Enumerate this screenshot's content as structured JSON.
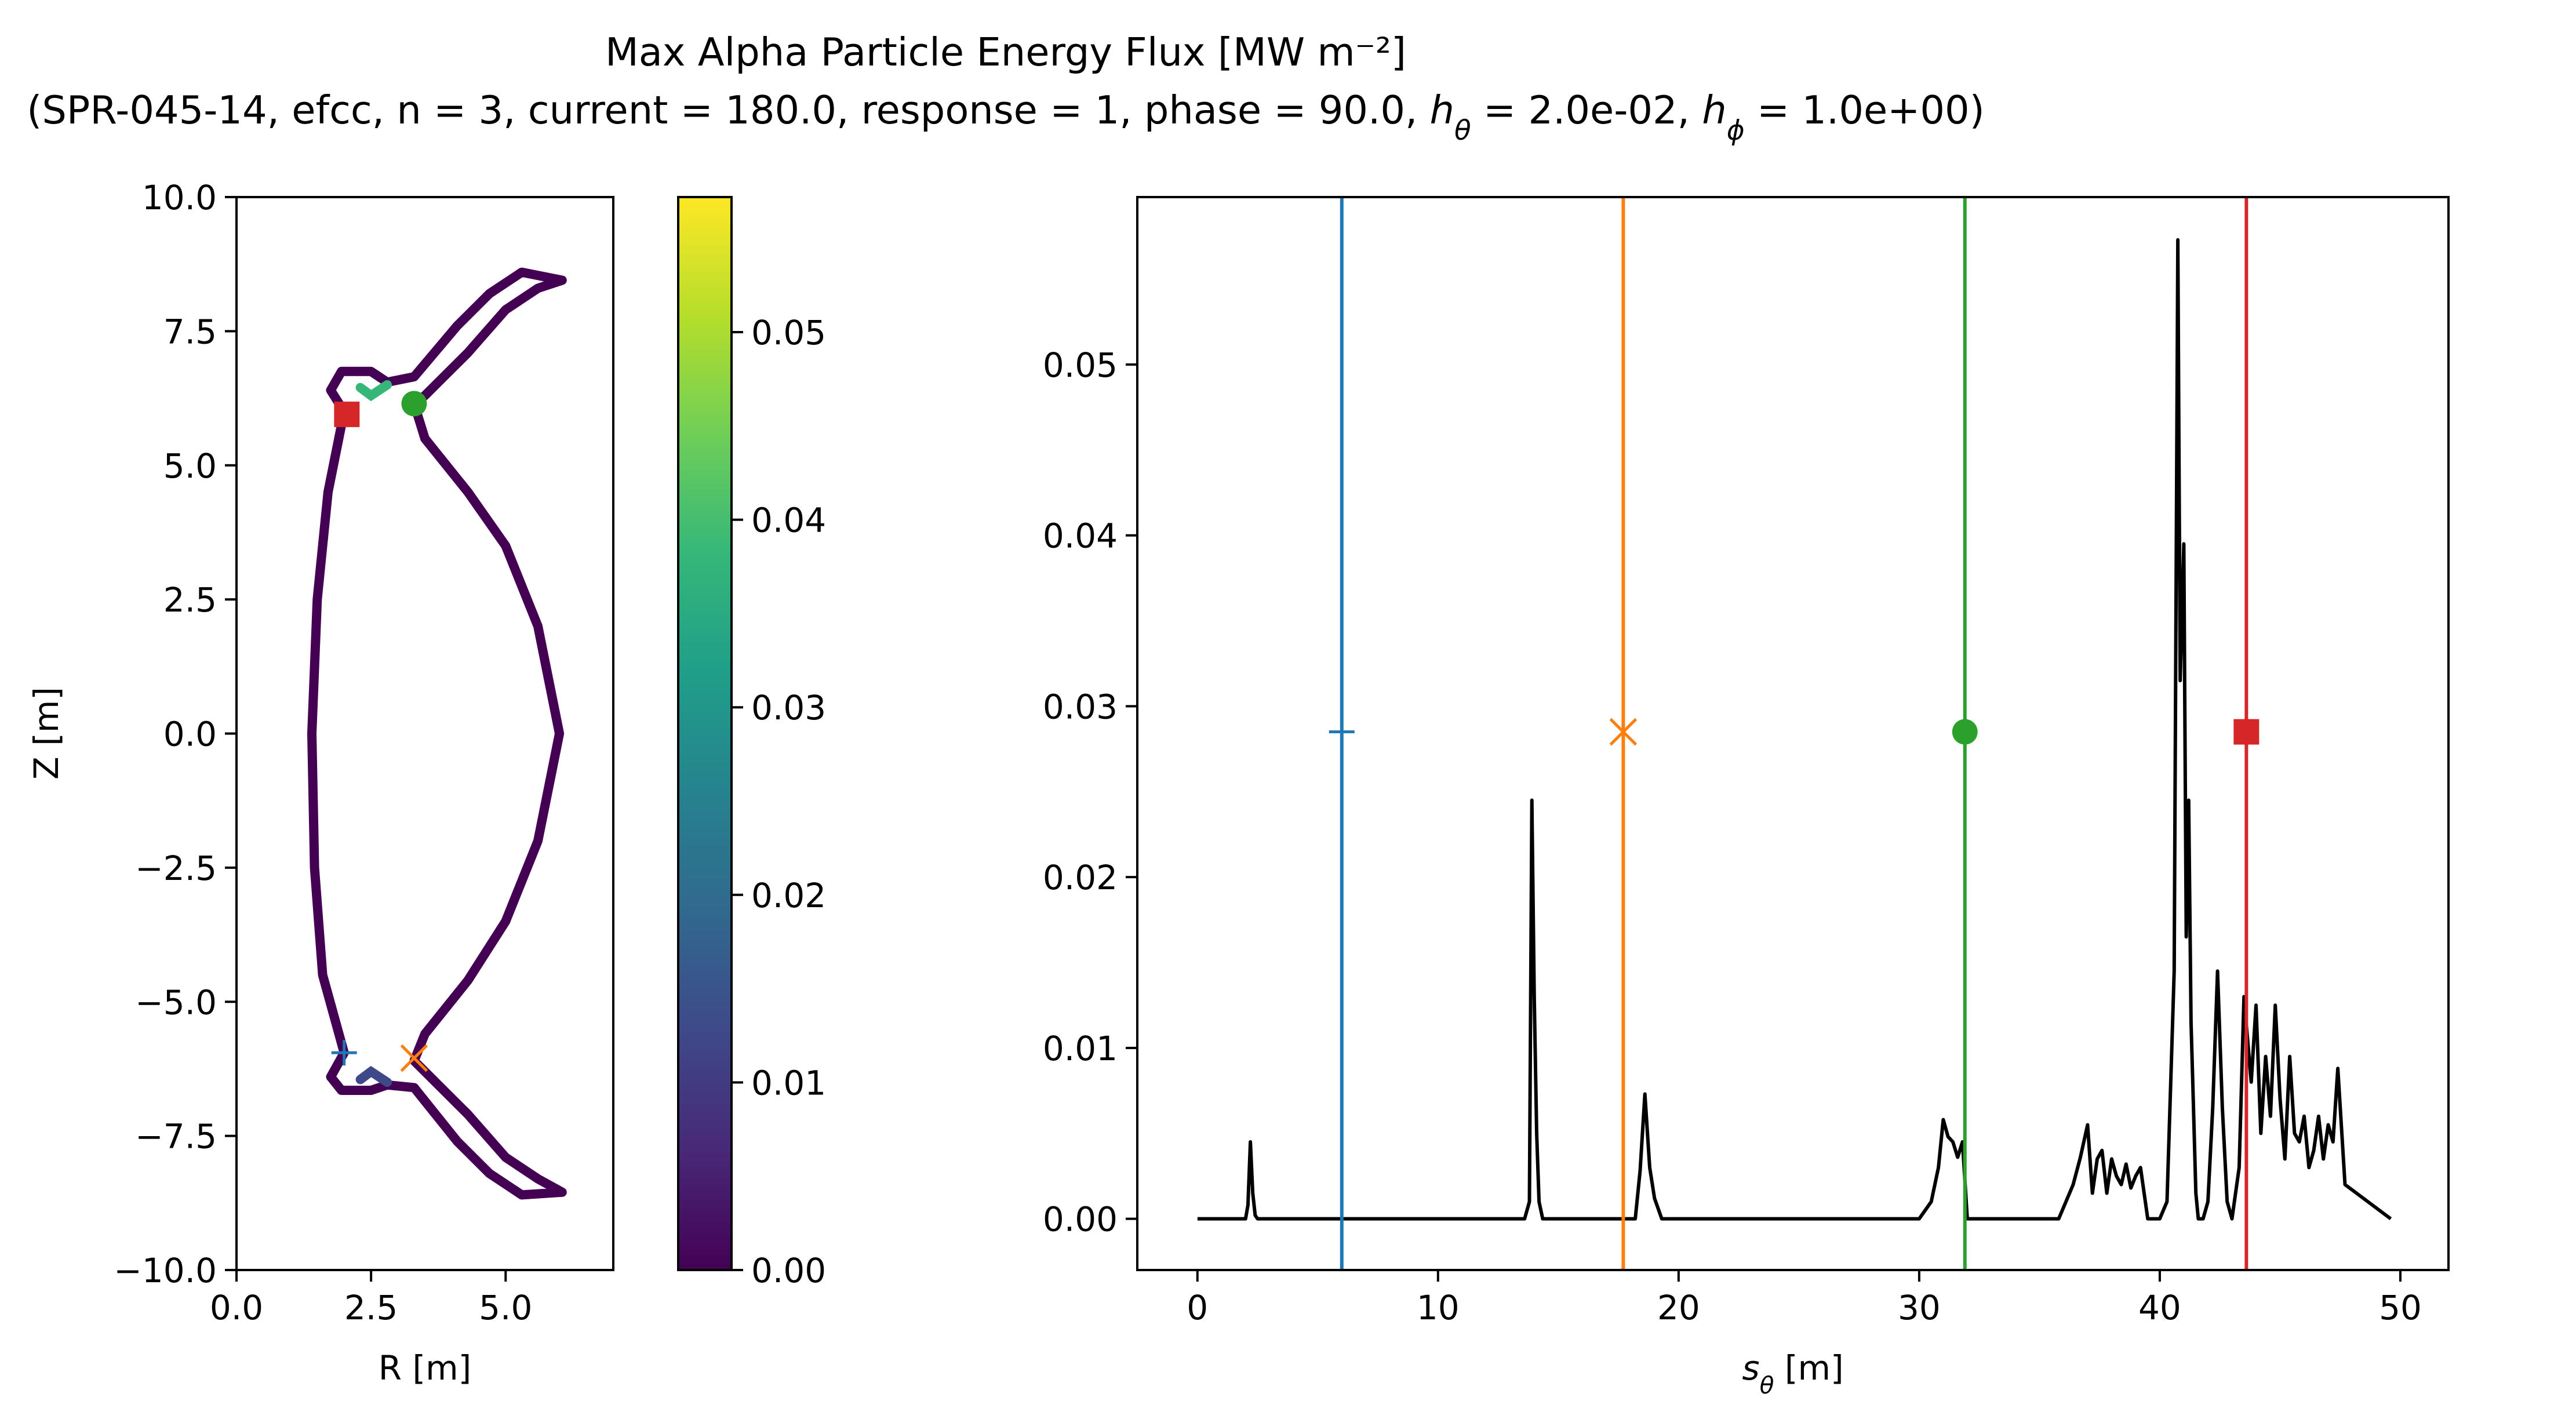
{
  "title_line1": "Max Alpha Particle Energy Flux [MW m⁻²]",
  "title_line2_parts": [
    "(SPR-045-14, efcc, n = 3, current = 180.0, response = 1, phase = 90.0, ",
    "h",
    "θ",
    " = 2.0e-02, ",
    "h",
    "ϕ",
    " = 1.0e+00)"
  ],
  "chart_data": [
    {
      "type": "line",
      "panel": "cross-section",
      "xlabel": "R [m]",
      "ylabel": "Z [m]",
      "xlim": [
        0,
        7.0
      ],
      "ylim": [
        -10,
        10
      ],
      "xticks": [
        0.0,
        2.5,
        5.0
      ],
      "xtick_labels": [
        "0.0",
        "2.5",
        "5.0"
      ],
      "yticks": [
        -10,
        -7.5,
        -5,
        -2.5,
        0,
        2.5,
        5,
        7.5,
        10
      ],
      "ytick_labels": [
        "−10.0",
        "−7.5",
        "−5.0",
        "−2.5",
        "0.0",
        "2.5",
        "5.0",
        "7.5",
        "10.0"
      ],
      "wall_outline": [
        [
          2.0,
          -5.95
        ],
        [
          1.75,
          -6.4
        ],
        [
          1.95,
          -6.65
        ],
        [
          2.5,
          -6.65
        ],
        [
          2.8,
          -6.55
        ],
        [
          3.3,
          -6.6
        ],
        [
          4.1,
          -7.6
        ],
        [
          4.7,
          -8.2
        ],
        [
          5.3,
          -8.6
        ],
        [
          6.05,
          -8.55
        ],
        [
          5.6,
          -8.3
        ],
        [
          5.0,
          -7.9
        ],
        [
          4.3,
          -7.1
        ],
        [
          3.5,
          -6.3
        ],
        [
          3.3,
          -6.1
        ],
        [
          3.5,
          -5.6
        ],
        [
          4.3,
          -4.6
        ],
        [
          5.0,
          -3.5
        ],
        [
          5.6,
          -2.0
        ],
        [
          6.0,
          0.0
        ],
        [
          5.6,
          2.0
        ],
        [
          5.0,
          3.5
        ],
        [
          4.3,
          4.5
        ],
        [
          3.5,
          5.5
        ],
        [
          3.3,
          6.15
        ],
        [
          3.5,
          6.3
        ],
        [
          4.3,
          7.1
        ],
        [
          5.0,
          7.9
        ],
        [
          5.6,
          8.3
        ],
        [
          6.05,
          8.45
        ],
        [
          5.3,
          8.6
        ],
        [
          4.7,
          8.2
        ],
        [
          4.1,
          7.6
        ],
        [
          3.3,
          6.65
        ],
        [
          2.8,
          6.55
        ],
        [
          2.5,
          6.75
        ],
        [
          1.95,
          6.75
        ],
        [
          1.75,
          6.4
        ],
        [
          2.0,
          6.0
        ],
        [
          1.7,
          4.5
        ],
        [
          1.5,
          2.5
        ],
        [
          1.4,
          0.0
        ],
        [
          1.45,
          -2.5
        ],
        [
          1.6,
          -4.5
        ],
        [
          2.0,
          -5.95
        ]
      ],
      "hotspots": [
        {
          "points": [
            [
              2.3,
              6.45
            ],
            [
              2.5,
              6.3
            ],
            [
              2.8,
              6.5
            ]
          ],
          "value": 0.04
        },
        {
          "points": [
            [
              2.3,
              -6.45
            ],
            [
              2.5,
              -6.3
            ],
            [
              2.8,
              -6.5
            ]
          ],
          "value": 0.012
        }
      ],
      "markers": [
        {
          "shape": "plus",
          "color": "#1f77b4",
          "x": 2.0,
          "y": -5.95
        },
        {
          "shape": "x",
          "color": "#ff7f0e",
          "x": 3.3,
          "y": -6.05
        },
        {
          "shape": "circle",
          "color": "#2ca02c",
          "x": 3.3,
          "y": 6.15
        },
        {
          "shape": "square",
          "color": "#d62728",
          "x": 2.05,
          "y": 5.95
        }
      ]
    },
    {
      "type": "colorbar",
      "panel": "colorbar",
      "colormap": "viridis",
      "range": [
        0,
        0.0572
      ],
      "ticks": [
        0.0,
        0.01,
        0.02,
        0.03,
        0.04,
        0.05
      ],
      "tick_labels": [
        "0.00",
        "0.01",
        "0.02",
        "0.03",
        "0.04",
        "0.05"
      ],
      "colormap_stops": [
        "#440154",
        "#482878",
        "#3e4989",
        "#31688e",
        "#26828e",
        "#1f9e89",
        "#35b779",
        "#6ece58",
        "#b5de2b",
        "#fde725"
      ]
    },
    {
      "type": "line",
      "panel": "flux-profile",
      "xlabel_parts": [
        "s",
        "θ",
        " [m]"
      ],
      "ylabel": "",
      "xlim": [
        -2.5,
        52.0
      ],
      "ylim": [
        -0.003,
        0.0598
      ],
      "xticks": [
        0,
        10,
        20,
        30,
        40,
        50
      ],
      "xtick_labels": [
        "0",
        "10",
        "20",
        "30",
        "40",
        "50"
      ],
      "yticks": [
        0.0,
        0.01,
        0.02,
        0.03,
        0.04,
        0.05
      ],
      "ytick_labels": [
        "0.00",
        "0.01",
        "0.02",
        "0.03",
        "0.04",
        "0.05"
      ],
      "series": [
        {
          "color": "#000000",
          "x": [
            0,
            2.0,
            2.1,
            2.2,
            2.3,
            2.4,
            2.5,
            13.6,
            13.8,
            13.9,
            14.0,
            14.1,
            14.2,
            14.35,
            18.2,
            18.4,
            18.6,
            18.8,
            19.0,
            19.3,
            30.0,
            30.5,
            30.8,
            31.0,
            31.2,
            31.4,
            31.6,
            31.8,
            32.0,
            35.8,
            36.1,
            36.4,
            36.7,
            37.0,
            37.2,
            37.4,
            37.6,
            37.8,
            38.0,
            38.2,
            38.4,
            38.6,
            38.8,
            39.0,
            39.2,
            39.5,
            40.0,
            40.3,
            40.5,
            40.6,
            40.75,
            40.85,
            41.0,
            41.1,
            41.2,
            41.3,
            41.4,
            41.5,
            41.6,
            41.8,
            42.0,
            42.2,
            42.4,
            42.6,
            42.8,
            43.0,
            43.3,
            43.5,
            43.8,
            44.0,
            44.2,
            44.4,
            44.6,
            44.8,
            45.0,
            45.2,
            45.4,
            45.6,
            45.8,
            46.0,
            46.2,
            46.4,
            46.6,
            46.8,
            47.0,
            47.2,
            47.4,
            47.7,
            49.6
          ],
          "y": [
            0,
            0,
            0.0008,
            0.0045,
            0.0015,
            0.0002,
            0,
            0,
            0.001,
            0.0245,
            0.013,
            0.005,
            0.001,
            0,
            0,
            0.0028,
            0.0073,
            0.003,
            0.0012,
            0,
            0,
            0.001,
            0.003,
            0.0058,
            0.0048,
            0.0045,
            0.0036,
            0.0045,
            0,
            0,
            0.001,
            0.002,
            0.0036,
            0.0055,
            0.0015,
            0.0035,
            0.004,
            0.0015,
            0.0035,
            0.0025,
            0.002,
            0.0032,
            0.0018,
            0.0025,
            0.003,
            0,
            0,
            0.001,
            0.01,
            0.0145,
            0.0573,
            0.0315,
            0.0395,
            0.0165,
            0.0245,
            0.0115,
            0.0065,
            0.0015,
            0,
            0,
            0.001,
            0.0065,
            0.0145,
            0.0065,
            0.001,
            0,
            0.003,
            0.013,
            0.008,
            0.0125,
            0.005,
            0.0095,
            0.006,
            0.0125,
            0.007,
            0.0035,
            0.0095,
            0.005,
            0.0045,
            0.006,
            0.003,
            0.004,
            0.006,
            0.0035,
            0.0055,
            0.0045,
            0.0088,
            0.002,
            0
          ]
        }
      ],
      "vlines": [
        {
          "x": 6.0,
          "color": "#1f77b4",
          "marker": "plus",
          "marker_y": 0.0285
        },
        {
          "x": 17.7,
          "color": "#ff7f0e",
          "marker": "x",
          "marker_y": 0.0285
        },
        {
          "x": 31.9,
          "color": "#2ca02c",
          "marker": "circle",
          "marker_y": 0.0285
        },
        {
          "x": 43.6,
          "color": "#d62728",
          "marker": "square",
          "marker_y": 0.0285
        }
      ]
    }
  ]
}
